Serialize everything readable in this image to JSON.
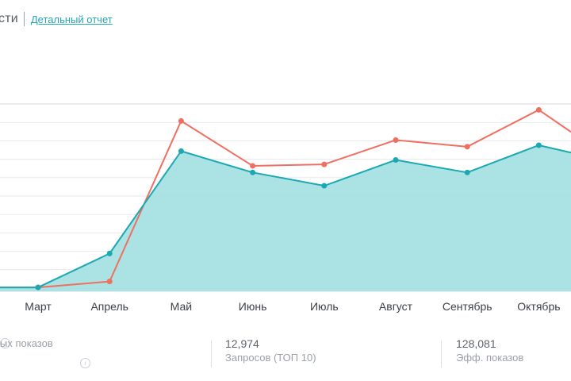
{
  "header": {
    "title": "сти",
    "detail_link": "Детальный отчет"
  },
  "chart_data": {
    "type": "area",
    "categories": [
      "Март",
      "Апрель",
      "Май",
      "Июнь",
      "Июль",
      "Август",
      "Сентябрь",
      "Октябрь"
    ],
    "series": [
      {
        "color": "#ef6f61",
        "values": [
          1,
          9,
          227,
          166,
          168,
          201,
          192,
          242
        ]
      },
      {
        "color": "#1aa9b2",
        "fill": "#a6e0e3",
        "values": [
          1,
          47,
          186,
          157,
          139,
          174,
          157,
          194
        ]
      }
    ],
    "ylim": [
      0,
      250
    ],
    "grid": true,
    "legend": "none"
  },
  "stats": [
    {
      "value": "",
      "label": "ых показов"
    },
    {
      "value": "12,974",
      "label": "Запросов (ТОП 10)"
    },
    {
      "value": "128,081",
      "label": "Эфф. показов"
    }
  ],
  "icons": {
    "info": "info-icon"
  }
}
